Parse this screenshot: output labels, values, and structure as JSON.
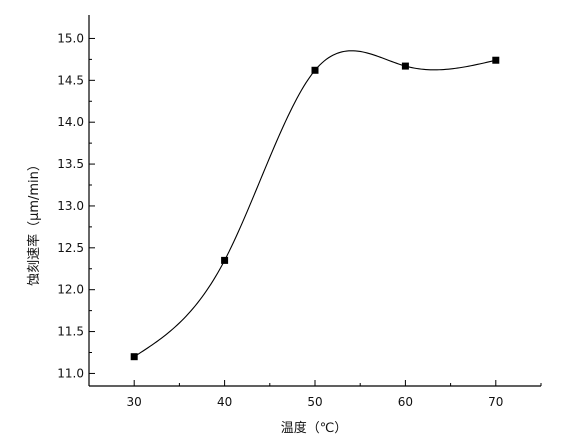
{
  "chart_data": {
    "type": "line",
    "x": [
      30,
      40,
      50,
      60,
      70
    ],
    "series": [
      {
        "values": [
          11.2,
          12.35,
          14.62,
          14.67,
          14.74
        ]
      }
    ],
    "xlabel": "温度（℃）",
    "ylabel": "蚀刻速率（μm/min）",
    "xlim": [
      25,
      75
    ],
    "ylim": [
      10.85,
      15.28
    ],
    "xticks": [
      "30",
      "40",
      "50",
      "60",
      "70"
    ],
    "yticks": [
      "11.0",
      "11.5",
      "12.0",
      "12.5",
      "13.0",
      "13.5",
      "14.0",
      "14.5",
      "15.0"
    ],
    "curve": "smooth spline through points",
    "marker": "square",
    "grid": false,
    "legend": "none",
    "colors": {
      "line": "#000000",
      "marker": "#000000",
      "axis": "#000000"
    }
  }
}
